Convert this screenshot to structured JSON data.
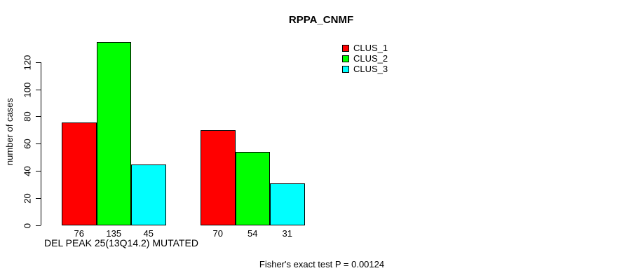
{
  "figure": {
    "title": "RPPA_CNMF",
    "annotation": "Fisher's exact test P = 0.00124"
  },
  "chart_data": {
    "type": "bar",
    "title": "RPPA_CNMF",
    "xlabel": "DEL PEAK 25(13Q14.2) MUTATED",
    "ylabel": "number of cases",
    "annotation": "Fisher's exact test P = 0.00124",
    "yticks": [
      0,
      20,
      40,
      60,
      80,
      100,
      120
    ],
    "ylim": [
      0,
      120
    ],
    "grid": false,
    "legend_position": "top-right",
    "n_groups": 2,
    "series": [
      {
        "name": "CLUS_1",
        "color": "#ff0000",
        "values": [
          76,
          70
        ]
      },
      {
        "name": "CLUS_2",
        "color": "#00ff00",
        "values": [
          135,
          54
        ]
      },
      {
        "name": "CLUS_3",
        "color": "#00ffff",
        "values": [
          45,
          31
        ]
      }
    ],
    "bar_value_labels": [
      [
        76,
        135,
        45
      ],
      [
        70,
        54,
        31
      ]
    ]
  }
}
